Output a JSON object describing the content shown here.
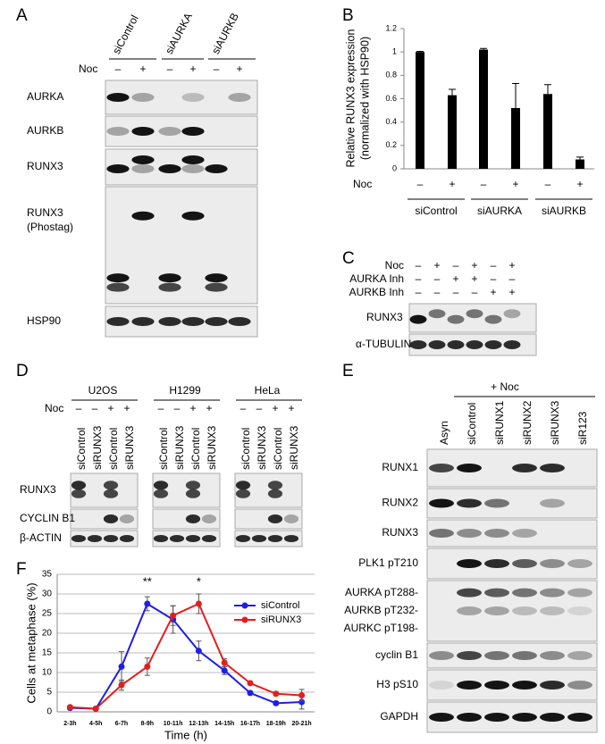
{
  "panels": {
    "A": {
      "label": "A",
      "groups": [
        "siControl",
        "siAURKA",
        "siAURKB"
      ],
      "treatment": "Noc",
      "signs": [
        "–",
        "+",
        "–",
        "+",
        "–",
        "+"
      ],
      "rows": [
        {
          "label": "AURKA"
        },
        {
          "label": "AURKB"
        },
        {
          "label": "RUNX3"
        },
        {
          "label": "RUNX3",
          "sublabel": "(Phostag)"
        },
        {
          "label": "HSP90"
        }
      ]
    },
    "B": {
      "label": "B"
    },
    "C": {
      "label": "C",
      "conditions": [
        {
          "label": "Noc",
          "signs": [
            "–",
            "+",
            "–",
            "+",
            "–",
            "+"
          ]
        },
        {
          "label": "AURKA Inh",
          "signs": [
            "–",
            "–",
            "+",
            "+",
            "–",
            "–"
          ]
        },
        {
          "label": "AURKB Inh",
          "signs": [
            "–",
            "–",
            "–",
            "–",
            "+",
            "+"
          ]
        }
      ],
      "rows": [
        {
          "label": "RUNX3"
        },
        {
          "label": "α-TUBULIN"
        }
      ]
    },
    "D": {
      "label": "D",
      "groups": [
        "U2OS",
        "H1299",
        "HeLa"
      ],
      "treatment": "Noc",
      "signs": [
        "–",
        "–",
        "+",
        "+"
      ],
      "lanes": [
        "siControl",
        "siRUNX3",
        "siControl",
        "siRUNX3"
      ],
      "rows": [
        {
          "label": "RUNX3"
        },
        {
          "label": "CYCLIN B1"
        },
        {
          "label": "β-ACTIN"
        }
      ]
    },
    "E": {
      "label": "E",
      "treatment": "+ Noc",
      "lanes": [
        "Asyn",
        "siControl",
        "siRUNX1",
        "siRUNX2",
        "siRUNX3",
        "siR123"
      ],
      "rows": [
        {
          "labels": [
            "RUNX1"
          ]
        },
        {
          "labels": [
            "RUNX2"
          ]
        },
        {
          "labels": [
            "RUNX3"
          ]
        },
        {
          "labels": [
            "PLK1 pT210"
          ]
        },
        {
          "labels": [
            "AURKA pT288-",
            "AURKB pT232-",
            "AURKC pT198-"
          ]
        },
        {
          "labels": [
            "cyclin B1"
          ]
        },
        {
          "labels": [
            "H3 pS10"
          ]
        },
        {
          "labels": [
            "GAPDH"
          ]
        }
      ]
    },
    "F": {
      "label": "F"
    }
  },
  "chart_data": [
    {
      "type": "bar",
      "y_label": [
        "Relative RUNX3 expression",
        "(normalized with HSP90)"
      ],
      "x_row_label": "Noc",
      "categories": [
        "–",
        "+",
        "–",
        "+",
        "–",
        "+"
      ],
      "groups": [
        "siControl",
        "siAURKA",
        "siAURKB"
      ],
      "values": [
        1.0,
        0.63,
        1.02,
        0.52,
        0.64,
        0.08
      ],
      "errors": [
        0.005,
        0.05,
        0.01,
        0.21,
        0.08,
        0.02
      ],
      "color": "#000000",
      "ylim": [
        0,
        1.2
      ],
      "yticks": [
        0,
        0.2,
        0.4,
        0.6,
        0.8,
        1,
        1.2
      ]
    },
    {
      "type": "line",
      "y_label": "Cells at metaphase (%)",
      "x_label": "Time (h)",
      "categories": [
        "2-3h",
        "4-5h",
        "6-7h",
        "8-9h",
        "10-11h",
        "12-13h",
        "14-15h",
        "16-17h",
        "18-19h",
        "20-21h"
      ],
      "series": [
        {
          "name": "siControl",
          "color": "#1f1fe0",
          "values": [
            1.0,
            0.8,
            11.5,
            27.5,
            23.5,
            15.5,
            10.5,
            4.8,
            2.2,
            2.5
          ],
          "errors": [
            0.3,
            0.3,
            3.8,
            1.8,
            3.5,
            2.5,
            1.0,
            0.4,
            0.4,
            1.8
          ]
        },
        {
          "name": "siRUNX3",
          "color": "#e01f1f",
          "values": [
            1.2,
            0.8,
            6.8,
            11.5,
            24.5,
            27.5,
            12.5,
            7.3,
            4.6,
            4.2
          ],
          "errors": [
            0.3,
            0.3,
            1.3,
            2.2,
            2.5,
            2.5,
            1.0,
            0.4,
            0.4,
            1.5
          ]
        }
      ],
      "annotations": [
        {
          "text": "**",
          "x": "8-9h"
        },
        {
          "text": "*",
          "x": "12-13h"
        }
      ],
      "ylim": [
        0,
        35
      ],
      "yticks": [
        0,
        5,
        10,
        15,
        20,
        25,
        30,
        35
      ],
      "grid": true,
      "legend": "upper right"
    }
  ]
}
